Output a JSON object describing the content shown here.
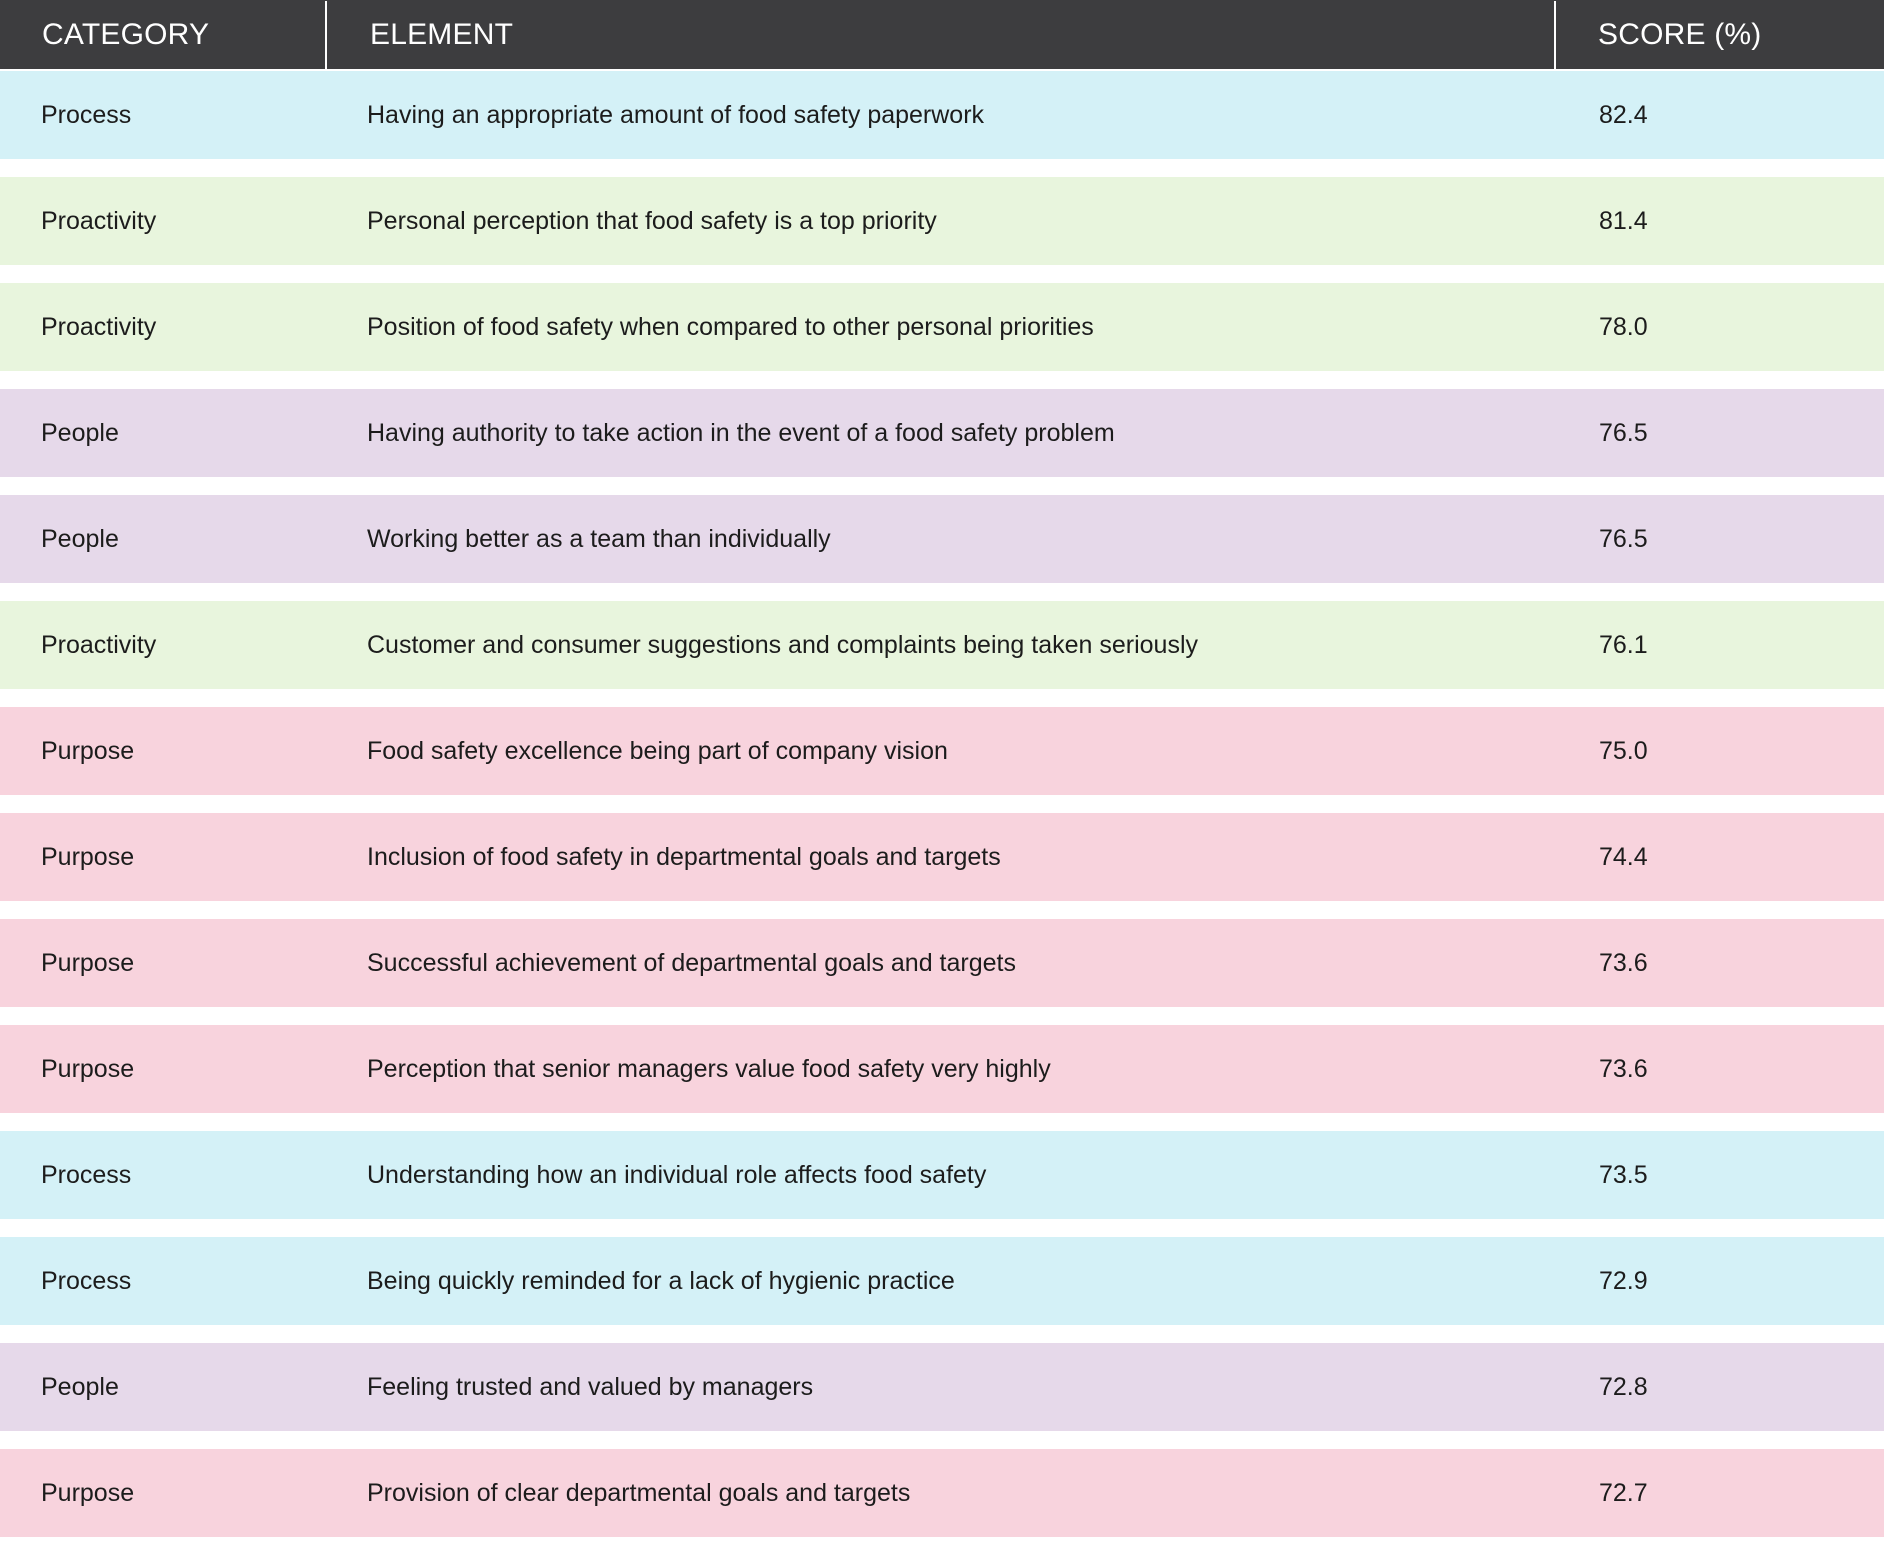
{
  "table": {
    "headers": {
      "category": "CATEGORY",
      "element": "ELEMENT",
      "score": "SCORE (%)"
    },
    "category_colors": {
      "Process": "#d4f1f7",
      "Proactivity": "#e8f5dd",
      "People": "#e6d9ea",
      "Purpose": "#f8d3dd"
    },
    "header_color": "#3d3d3f",
    "rows": [
      {
        "category": "Process",
        "element": "Having an appropriate amount of food safety paperwork",
        "score": "82.4"
      },
      {
        "category": "Proactivity",
        "element": "Personal perception that food safety is a top priority",
        "score": "81.4"
      },
      {
        "category": "Proactivity",
        "element": "Position of food safety when compared to other personal priorities",
        "score": "78.0"
      },
      {
        "category": "People",
        "element": "Having authority to take action in the event of a food safety problem",
        "score": "76.5"
      },
      {
        "category": "People",
        "element": "Working better as a team than individually",
        "score": "76.5"
      },
      {
        "category": "Proactivity",
        "element": "Customer and consumer suggestions and complaints being taken seriously",
        "score": "76.1"
      },
      {
        "category": "Purpose",
        "element": "Food safety excellence being part of company vision",
        "score": "75.0"
      },
      {
        "category": "Purpose",
        "element": "Inclusion of food safety in departmental goals and targets",
        "score": "74.4"
      },
      {
        "category": "Purpose",
        "element": "Successful achievement of departmental goals and targets",
        "score": "73.6"
      },
      {
        "category": "Purpose",
        "element": "Perception that senior managers value food safety very highly",
        "score": "73.6"
      },
      {
        "category": "Process",
        "element": "Understanding how an individual role affects food safety",
        "score": "73.5"
      },
      {
        "category": "Process",
        "element": "Being quickly reminded for a lack of hygienic practice",
        "score": "72.9"
      },
      {
        "category": "People",
        "element": "Feeling trusted and valued by managers",
        "score": "72.8"
      },
      {
        "category": "Purpose",
        "element": "Provision of clear departmental goals and targets",
        "score": "72.7"
      }
    ]
  }
}
